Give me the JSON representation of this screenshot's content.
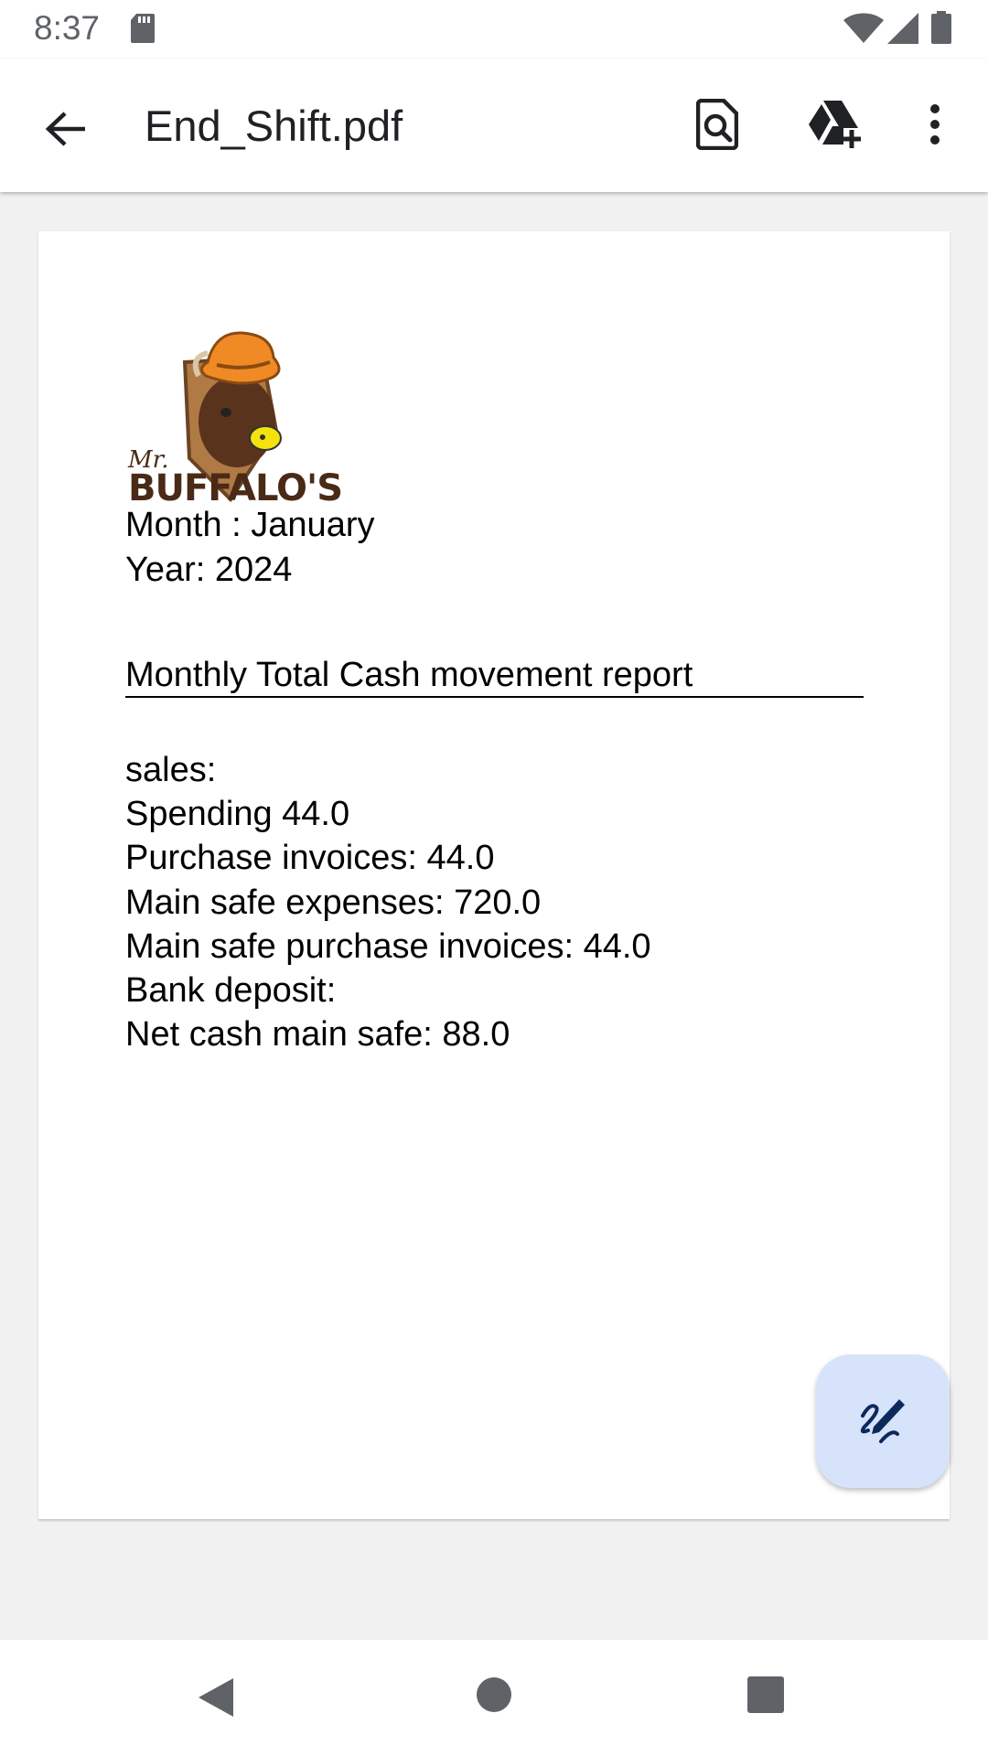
{
  "status_bar": {
    "time": "8:37",
    "icons": [
      "sd-card-icon",
      "wifi-icon",
      "signal-icon",
      "battery-icon"
    ]
  },
  "app_bar": {
    "title": "End_Shift.pdf",
    "icons": [
      "back-arrow-icon",
      "find-in-document-icon",
      "drive-add-icon",
      "more-vert-icon"
    ]
  },
  "document": {
    "logo_text": "BUFFALO'S",
    "logo_script": "Mr.",
    "month": "Month : January",
    "year": "Year: 2024",
    "report_title": "Monthly Total Cash movement report",
    "lines": [
      "sales:",
      "Spending 44.0",
      "Purchase invoices: 44.0",
      "Main safe expenses: 720.0",
      "Main safe purchase invoices: 44.0",
      "Bank deposit:",
      "Net cash main safe: 88.0"
    ]
  },
  "fab": {
    "icon": "annotate-pen-icon"
  },
  "nav_bar": {
    "icons": [
      "nav-back-icon",
      "nav-home-icon",
      "nav-recents-icon"
    ]
  },
  "colors": {
    "background": "#f1f1f1",
    "fab": "#d7e3fb",
    "logo_brown": "#4a2a17",
    "hat_orange": "#f08a24",
    "nose_yellow": "#f4e20c"
  }
}
